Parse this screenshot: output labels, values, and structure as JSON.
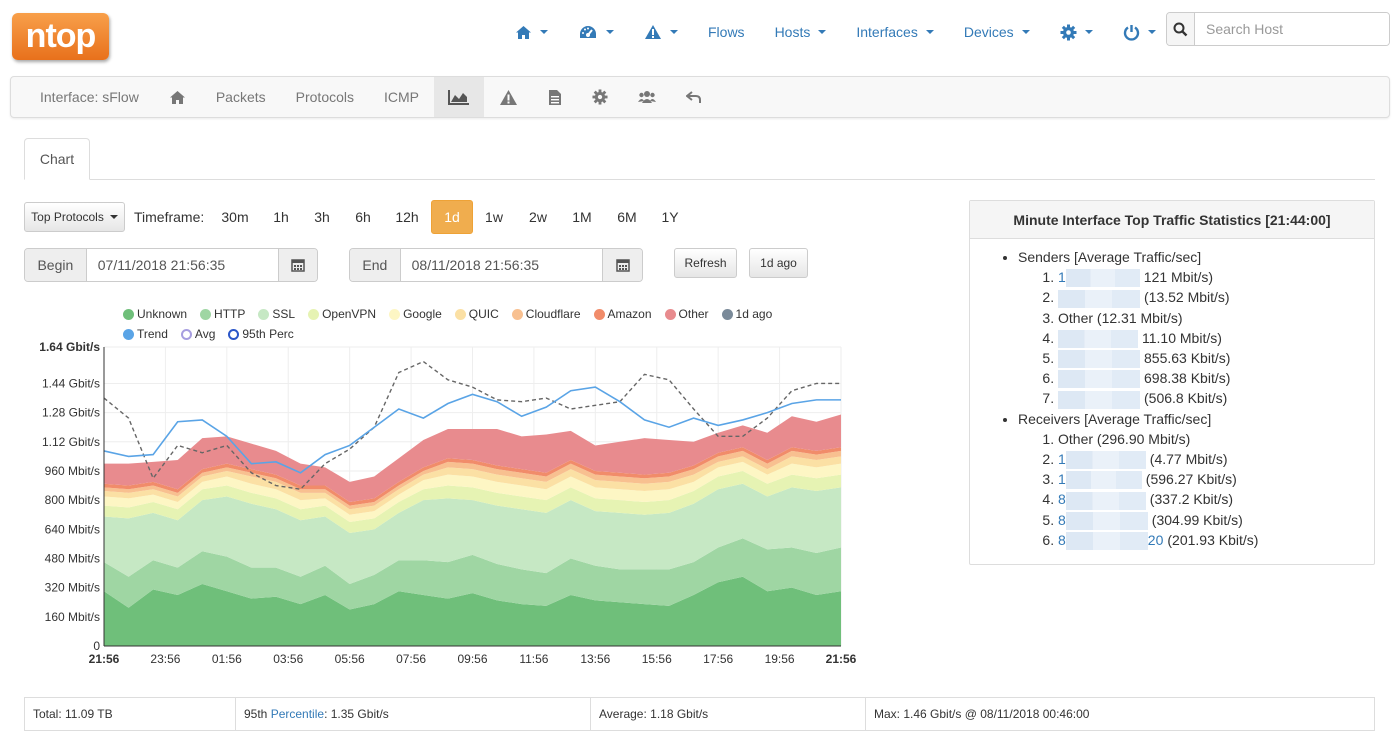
{
  "logo": {
    "text": "ntop"
  },
  "topnav": {
    "items": [
      {
        "icon": "home-icon",
        "caret": true
      },
      {
        "icon": "dashboard-icon",
        "caret": true
      },
      {
        "icon": "alert-icon",
        "caret": true
      },
      {
        "label": "Flows",
        "caret": false
      },
      {
        "label": "Hosts",
        "caret": true
      },
      {
        "label": "Interfaces",
        "caret": true
      },
      {
        "label": "Devices",
        "caret": true
      },
      {
        "icon": "gear-icon",
        "caret": true
      },
      {
        "icon": "power-icon",
        "caret": true
      }
    ],
    "search": {
      "placeholder": "Search Host"
    }
  },
  "subnav": {
    "interface_label": "Interface: sFlow",
    "packets": "Packets",
    "protocols": "Protocols",
    "icmp": "ICMP"
  },
  "tabs": {
    "chart": "Chart"
  },
  "controls": {
    "protocol_select": "Top Protocols",
    "timeframe_label": "Timeframe:",
    "timeframes": [
      "30m",
      "1h",
      "3h",
      "6h",
      "12h",
      "1d",
      "1w",
      "2w",
      "1M",
      "6M",
      "1Y"
    ],
    "active_timeframe": "1d",
    "begin_label": "Begin",
    "begin_value": "07/11/2018 21:56:35",
    "end_label": "End",
    "end_value": "08/11/2018 21:56:35",
    "refresh": "Refresh",
    "ago": "1d ago"
  },
  "colors": {
    "unknown": "#6fbf7a",
    "http": "#9fd6a3",
    "ssl": "#c6e8c4",
    "openvpn": "#e6f3b3",
    "google": "#fdf6c4",
    "quic": "#fbe0a4",
    "cloudflare": "#f8c090",
    "amazon": "#f18c6a",
    "other": "#e88b8e",
    "ago1d": "#7a8a99",
    "trend": "#5aa4e6",
    "avg": "#a79ee0",
    "perc95": "#2a56c8",
    "accent": "#f0ad4e"
  },
  "chart_data": {
    "type": "area",
    "title": "",
    "y_tick_labels": [
      "0",
      "160 Mbit/s",
      "320 Mbit/s",
      "480 Mbit/s",
      "640 Mbit/s",
      "800 Mbit/s",
      "960 Mbit/s",
      "1.12 Gbit/s",
      "1.28 Gbit/s",
      "1.44 Gbit/s",
      "1.64 Gbit/s"
    ],
    "ylim_mbit": [
      0,
      1640
    ],
    "x_tick_labels": [
      "21:56",
      "23:56",
      "01:56",
      "03:56",
      "05:56",
      "07:56",
      "09:56",
      "11:56",
      "13:56",
      "15:56",
      "17:56",
      "19:56",
      "21:56"
    ],
    "x_hours": [
      0,
      24
    ],
    "legend": [
      "Unknown",
      "HTTP",
      "SSL",
      "OpenVPN",
      "Google",
      "QUIC",
      "Cloudflare",
      "Amazon",
      "Other",
      "1d ago",
      "Trend",
      "Avg",
      "95th Perc"
    ],
    "stack_series": [
      {
        "name": "Unknown",
        "values": [
          300,
          210,
          310,
          280,
          340,
          300,
          260,
          270,
          230,
          280,
          200,
          230,
          300,
          280,
          260,
          290,
          250,
          230,
          220,
          280,
          250,
          240,
          230,
          220,
          280,
          350,
          380,
          300,
          320,
          280,
          300
        ]
      },
      {
        "name": "HTTP",
        "values": [
          160,
          170,
          160,
          150,
          180,
          190,
          170,
          160,
          150,
          160,
          140,
          160,
          170,
          190,
          200,
          210,
          200,
          190,
          180,
          200,
          190,
          180,
          190,
          200,
          180,
          190,
          210,
          230,
          220,
          230,
          240
        ]
      },
      {
        "name": "SSL",
        "values": [
          250,
          320,
          260,
          260,
          280,
          330,
          350,
          320,
          310,
          270,
          280,
          250,
          260,
          330,
          350,
          300,
          320,
          330,
          330,
          320,
          300,
          310,
          300,
          310,
          320,
          320,
          300,
          290,
          330,
          340,
          330
        ]
      },
      {
        "name": "OpenVPN",
        "values": [
          60,
          60,
          60,
          60,
          60,
          60,
          60,
          60,
          60,
          60,
          60,
          60,
          60,
          60,
          70,
          70,
          70,
          70,
          70,
          70,
          70,
          70,
          70,
          70,
          70,
          70,
          70,
          70,
          70,
          70,
          70
        ]
      },
      {
        "name": "Google",
        "values": [
          50,
          50,
          40,
          40,
          40,
          50,
          50,
          50,
          50,
          40,
          40,
          40,
          40,
          50,
          60,
          60,
          60,
          60,
          60,
          60,
          60,
          60,
          60,
          60,
          50,
          50,
          50,
          50,
          60,
          60,
          60
        ]
      },
      {
        "name": "QUIC",
        "values": [
          30,
          30,
          30,
          30,
          30,
          30,
          40,
          40,
          40,
          30,
          30,
          30,
          30,
          30,
          40,
          40,
          40,
          40,
          40,
          40,
          40,
          40,
          40,
          40,
          40,
          30,
          30,
          30,
          40,
          40,
          40
        ]
      },
      {
        "name": "Cloudflare",
        "values": [
          20,
          20,
          20,
          20,
          20,
          20,
          20,
          20,
          20,
          20,
          20,
          20,
          20,
          20,
          30,
          30,
          30,
          30,
          30,
          30,
          30,
          30,
          30,
          30,
          30,
          30,
          30,
          30,
          30,
          30,
          30
        ]
      },
      {
        "name": "Amazon",
        "values": [
          20,
          20,
          20,
          20,
          20,
          20,
          20,
          20,
          20,
          20,
          20,
          20,
          20,
          20,
          20,
          20,
          20,
          20,
          20,
          20,
          20,
          20,
          20,
          20,
          20,
          20,
          20,
          20,
          20,
          20,
          20
        ]
      },
      {
        "name": "Other",
        "values": [
          110,
          120,
          110,
          160,
          170,
          150,
          140,
          130,
          120,
          100,
          110,
          120,
          130,
          150,
          160,
          170,
          200,
          180,
          210,
          160,
          140,
          170,
          200,
          180,
          130,
          110,
          120,
          150,
          170,
          160,
          180
        ]
      }
    ],
    "line_series": [
      {
        "name": "1d ago",
        "values": [
          1360,
          1250,
          920,
          1100,
          1060,
          1100,
          950,
          880,
          860,
          1000,
          1080,
          1200,
          1500,
          1560,
          1460,
          1420,
          1350,
          1340,
          1360,
          1300,
          1320,
          1340,
          1490,
          1460,
          1300,
          1150,
          1150,
          1250,
          1400,
          1440,
          1440
        ]
      },
      {
        "name": "Trend",
        "values": [
          1070,
          1040,
          1050,
          1230,
          1240,
          1150,
          1000,
          1010,
          950,
          1050,
          1100,
          1200,
          1300,
          1250,
          1330,
          1380,
          1340,
          1260,
          1310,
          1400,
          1420,
          1340,
          1240,
          1200,
          1250,
          1210,
          1240,
          1280,
          1330,
          1350,
          1350
        ]
      }
    ]
  },
  "stats": {
    "title": "Minute Interface Top Traffic Statistics [21:44:00]",
    "senders_label": "Senders [Average Traffic/sec]",
    "senders": [
      {
        "pre": "1",
        "suffix": "121 Mbit/s)"
      },
      {
        "pre": "",
        "suffix": "(13.52 Mbit/s)"
      },
      {
        "text": "Other (12.31 Mbit/s)"
      },
      {
        "pre": "",
        "suffix": "11.10 Mbit/s)"
      },
      {
        "pre": "",
        "suffix": "855.63 Kbit/s)"
      },
      {
        "pre": "",
        "suffix": "698.38 Kbit/s)"
      },
      {
        "pre": "",
        "suffix": "(506.8 Kbit/s)"
      }
    ],
    "receivers_label": "Receivers [Average Traffic/sec]",
    "receivers": [
      {
        "text": "Other (296.90 Mbit/s)"
      },
      {
        "pre": "1",
        "suffix": "(4.77 Mbit/s)"
      },
      {
        "pre": "1",
        "suffix": "(596.27 Kbit/s)"
      },
      {
        "pre": "8",
        "suffix": "(337.2 Kbit/s)"
      },
      {
        "pre": "8",
        "suffix": "(304.99 Kbit/s)"
      },
      {
        "pre": "8",
        "mid": "20",
        "suffix": "(201.93 Kbit/s)"
      }
    ]
  },
  "totals": {
    "total": "Total: 11.09 TB",
    "percentile_prefix": "95th ",
    "percentile_link": "Percentile",
    "percentile_value": ": 1.35 Gbit/s",
    "average": "Average: 1.18 Gbit/s",
    "max": "Max: 1.46 Gbit/s @ 08/11/2018 00:46:00"
  }
}
